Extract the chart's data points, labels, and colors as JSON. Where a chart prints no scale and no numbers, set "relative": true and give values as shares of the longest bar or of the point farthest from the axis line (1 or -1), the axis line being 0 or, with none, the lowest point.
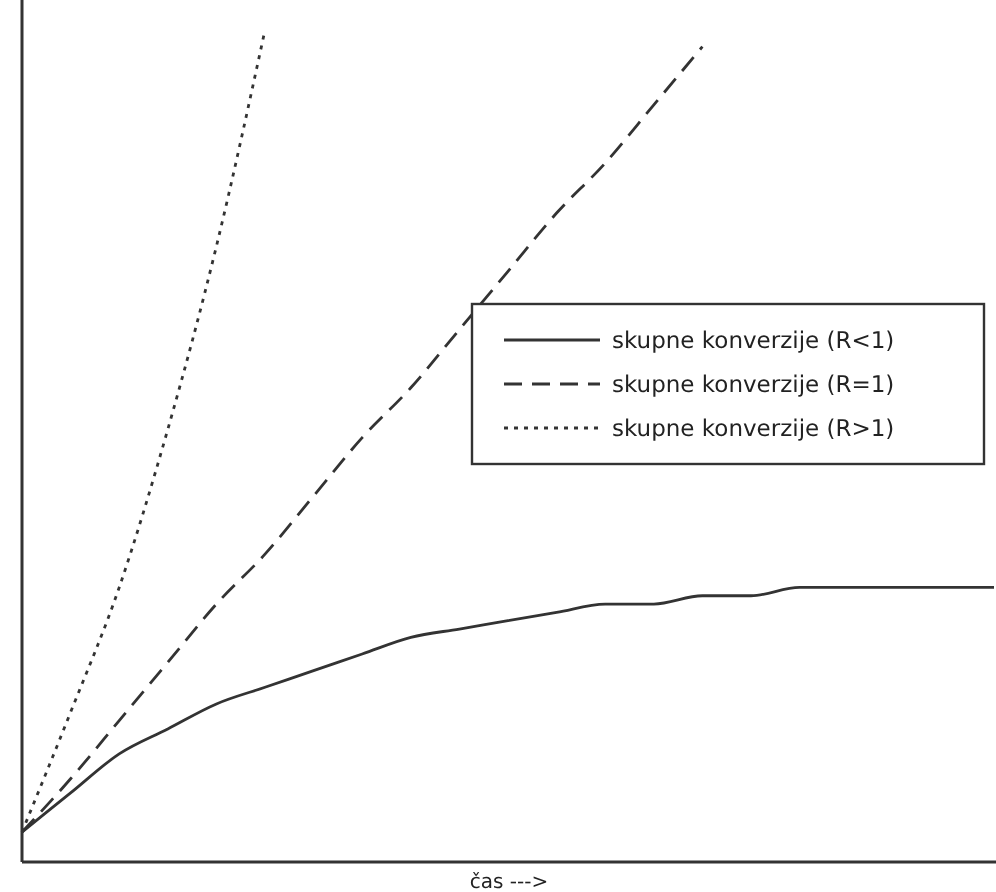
{
  "chart_data": {
    "type": "line",
    "relative": true,
    "xlabel": "čas --->",
    "categories": [
      null,
      null,
      null,
      null,
      null,
      null,
      null,
      null,
      null,
      null,
      null,
      null,
      null,
      null,
      null,
      null,
      null,
      null,
      null,
      null,
      null
    ],
    "legend": "right",
    "marker": "none",
    "series": [
      {
        "name": "skupne konverzije (R<1)",
        "color": "#333333",
        "line_style": "solid",
        "values": [
          0.036,
          0.083,
          0.13,
          0.16,
          0.19,
          0.21,
          0.23,
          0.25,
          0.27,
          0.28,
          0.29,
          0.3,
          0.31,
          0.31,
          0.32,
          0.32,
          0.33,
          0.33,
          0.33,
          0.33,
          0.33
        ]
      },
      {
        "name": "skupne konverzije (R=1)",
        "color": "#333333",
        "line_style": "dashed",
        "values": [
          0.036,
          0.1,
          0.17,
          0.24,
          0.31,
          0.37,
          0.44,
          0.51,
          0.57,
          0.64,
          0.71,
          0.78,
          0.84,
          0.91,
          0.98,
          null,
          null,
          null,
          null,
          null,
          null
        ]
      },
      {
        "name": "skupne konverzije (R>1)",
        "color": "#333333",
        "line_style": "dotted",
        "values": [
          0.036,
          0.18,
          0.33,
          0.52,
          0.74,
          1.0,
          null,
          null,
          null,
          null,
          null,
          null,
          null,
          null,
          null,
          null,
          null,
          null,
          null,
          null,
          null
        ]
      }
    ]
  }
}
